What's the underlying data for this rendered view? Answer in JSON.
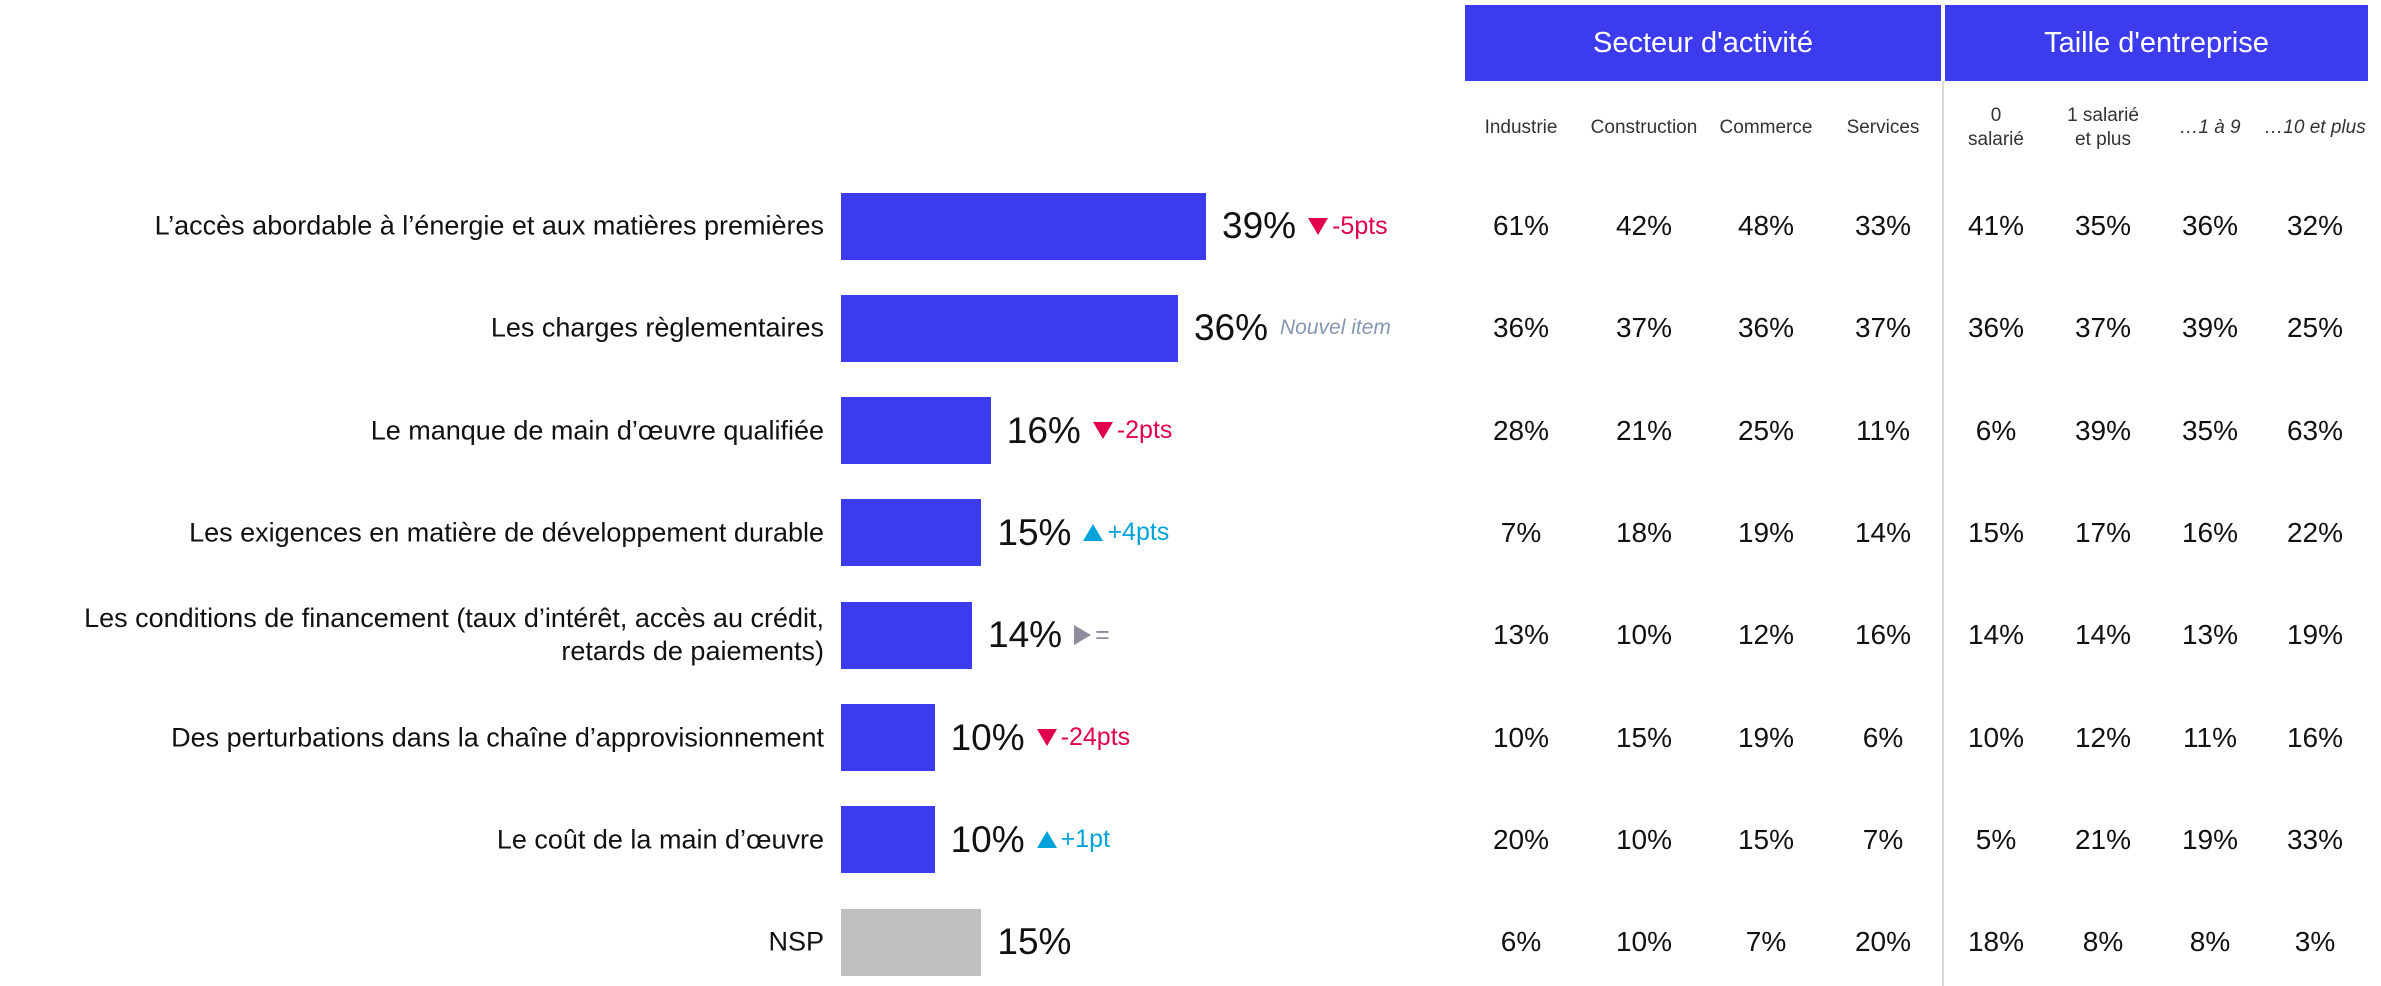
{
  "chart_data": {
    "type": "bar",
    "orientation": "horizontal",
    "categories": [
      "L’accès abordable à l’énergie et aux matières premières",
      "Les charges règlementaires",
      "Le manque de main d’œuvre qualifiée",
      "Les exigences en matière de développement durable",
      "Les conditions de financement (taux d’intérêt, accès au crédit, retards de paiements)",
      "Des perturbations dans la chaîne d’approvisionnement",
      "Le coût de la main d’œuvre",
      "NSP"
    ],
    "values": [
      39,
      36,
      16,
      15,
      14,
      10,
      10,
      15
    ],
    "value_labels": [
      "39%",
      "36%",
      "16%",
      "15%",
      "14%",
      "10%",
      "10%",
      "15%"
    ],
    "colors": [
      "#3c3cee",
      "#3c3cee",
      "#3c3cee",
      "#3c3cee",
      "#3c3cee",
      "#3c3cee",
      "#3c3cee",
      "#bfbfbf"
    ],
    "changes": [
      {
        "direction": "down",
        "label": "-5pts"
      },
      {
        "direction": null,
        "label": "Nouvel item"
      },
      {
        "direction": "down",
        "label": "-2pts"
      },
      {
        "direction": "up",
        "label": "+4pts"
      },
      {
        "direction": "flat",
        "label": "="
      },
      {
        "direction": "down",
        "label": "-24pts"
      },
      {
        "direction": "up",
        "label": "+1pt"
      },
      null
    ]
  },
  "table": {
    "groups": [
      "Secteur d'activité",
      "Taille d'entreprise"
    ],
    "columns": [
      {
        "label": "Industrie"
      },
      {
        "label": "Construction"
      },
      {
        "label": "Commerce"
      },
      {
        "label": "Services"
      },
      {
        "label": "0\nsalarié"
      },
      {
        "label": "1 salarié\net plus"
      },
      {
        "label": "…1 à 9",
        "italic": true
      },
      {
        "label": "…10 et plus",
        "italic": true
      }
    ],
    "rows": [
      [
        "61%",
        "42%",
        "48%",
        "33%",
        "41%",
        "35%",
        "36%",
        "32%"
      ],
      [
        "36%",
        "37%",
        "36%",
        "37%",
        "36%",
        "37%",
        "39%",
        "25%"
      ],
      [
        "28%",
        "21%",
        "25%",
        "11%",
        "6%",
        "39%",
        "35%",
        "63%"
      ],
      [
        "7%",
        "18%",
        "19%",
        "14%",
        "15%",
        "17%",
        "16%",
        "22%"
      ],
      [
        "13%",
        "10%",
        "12%",
        "16%",
        "14%",
        "14%",
        "13%",
        "19%"
      ],
      [
        "10%",
        "15%",
        "19%",
        "6%",
        "10%",
        "12%",
        "11%",
        "16%"
      ],
      [
        "20%",
        "10%",
        "15%",
        "7%",
        "5%",
        "21%",
        "19%",
        "33%"
      ],
      [
        "6%",
        "10%",
        "7%",
        "20%",
        "18%",
        "8%",
        "8%",
        "3%"
      ]
    ]
  }
}
